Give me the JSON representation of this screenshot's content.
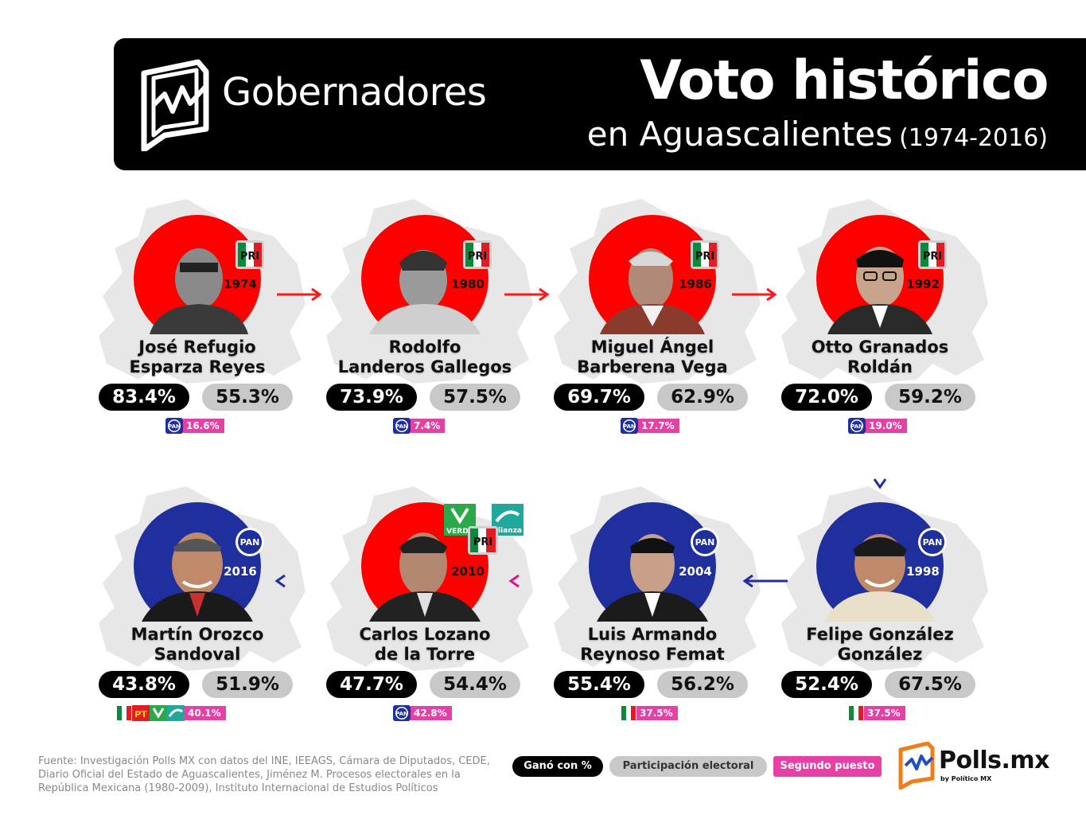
{
  "header": {
    "section_label": "Gobernadores",
    "title": "Voto histórico",
    "subtitle_main": "en Aguascalientes",
    "subtitle_years": "(1974-2016)"
  },
  "colors": {
    "pri_red": "#ff0000",
    "pan_blue": "#1f2f9e",
    "second_pink": "#e63fa6",
    "map_gray": "#e7e7e7"
  },
  "governors": [
    {
      "name_line1": "José Refugio",
      "name_line2": "Esparza Reyes",
      "year": "1974",
      "party": "PRI",
      "won_pct": "83.4%",
      "participation": "55.3%",
      "second_party": "PAN",
      "second_pct": "16.6%"
    },
    {
      "name_line1": "Rodolfo",
      "name_line2": "Landeros Gallegos",
      "year": "1980",
      "party": "PRI",
      "won_pct": "73.9%",
      "participation": "57.5%",
      "second_party": "PAN",
      "second_pct": "7.4%"
    },
    {
      "name_line1": "Miguel Ángel",
      "name_line2": "Barberena Vega",
      "year": "1986",
      "party": "PRI",
      "won_pct": "69.7%",
      "participation": "62.9%",
      "second_party": "PAN",
      "second_pct": "17.7%"
    },
    {
      "name_line1": "Otto Granados",
      "name_line2": "Roldán",
      "year": "1992",
      "party": "PRI",
      "won_pct": "72.0%",
      "participation": "59.2%",
      "second_party": "PAN",
      "second_pct": "19.0%"
    },
    {
      "name_line1": "Felipe González",
      "name_line2": "González",
      "year": "1998",
      "party": "PAN",
      "won_pct": "52.4%",
      "participation": "67.5%",
      "second_party": "PRI",
      "second_pct": "37.5%"
    },
    {
      "name_line1": "Luis Armando",
      "name_line2": "Reynoso Femat",
      "year": "2004",
      "party": "PAN",
      "won_pct": "55.4%",
      "participation": "56.2%",
      "second_party": "PRI",
      "second_pct": "37.5%"
    },
    {
      "name_line1": "Carlos Lozano",
      "name_line2": "de la Torre",
      "year": "2010",
      "party": "PRI",
      "won_pct": "47.7%",
      "participation": "54.4%",
      "second_party": "PAN",
      "second_pct": "42.8%",
      "coalition_labels": [
        "VERDE",
        "alianza"
      ]
    },
    {
      "name_line1": "Martín Orozco",
      "name_line2": "Sandoval",
      "year": "2016",
      "party": "PAN",
      "won_pct": "43.8%",
      "participation": "51.9%",
      "second_party": "PRI-PT-VERDE-ALIANZA",
      "second_pct": "40.1%"
    }
  ],
  "party_logos": {
    "pri": "PRI",
    "pan": "PAN",
    "pt": "PT"
  },
  "footer": {
    "source": "Fuente: Investigación Polls MX con datos del INE, IEEAGS, Cámara de Diputados, CEDE, Diario Oficial del Estado de Aguascalientes, Jiménez M. Procesos electorales en la República Mexicana (1980-2009), Instituto Internacional de Estudios Políticos",
    "legend_win": "Ganó con %",
    "legend_participation": "Participación electoral",
    "legend_second": "Segundo puesto",
    "brand_name": "Polls.mx",
    "brand_sub": "by Político MX"
  }
}
